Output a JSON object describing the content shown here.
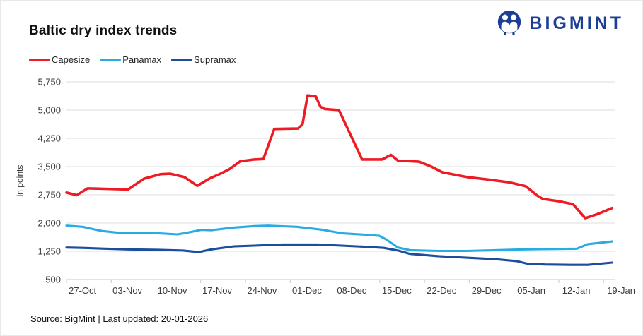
{
  "header": {
    "title": "Baltic dry index trends",
    "brand": "BIGMINT",
    "brand_color": "#1c3e95"
  },
  "footer": {
    "source_line": "Source: BigMint | Last updated: 20-01-2026"
  },
  "chart_data": {
    "type": "line",
    "title": "Baltic dry index trends",
    "xlabel": "",
    "ylabel": "in points",
    "x_unit": "days since 27-Oct",
    "x_domain": [
      -2.5,
      83
    ],
    "ylim": [
      500,
      5750
    ],
    "yticks": [
      500,
      1250,
      2000,
      2750,
      3500,
      4250,
      5000,
      5750
    ],
    "ytick_labels": [
      "500",
      "1,250",
      "2,000",
      "2,750",
      "3,500",
      "4,250",
      "5,000",
      "5,750"
    ],
    "categories": [
      "27-Oct",
      "03-Nov",
      "10-Nov",
      "17-Nov",
      "24-Nov",
      "01-Dec",
      "08-Dec",
      "15-Dec",
      "22-Dec",
      "29-Dec",
      "05-Jan",
      "12-Jan",
      "19-Jan"
    ],
    "category_days": [
      0,
      7,
      14,
      21,
      28,
      35,
      42,
      49,
      56,
      63,
      70,
      77,
      84
    ],
    "grid": "horizontal",
    "legend_position": "top-left",
    "colors": {
      "grid": "#dedede",
      "axis": "#c9c9c9",
      "tick_text": "#3c3c3c"
    },
    "series": [
      {
        "name": "Capesize",
        "color": "#ed1c24",
        "points": [
          [
            -2.5,
            2810
          ],
          [
            -0.9,
            2740
          ],
          [
            0.8,
            2920
          ],
          [
            3.5,
            2910
          ],
          [
            7.1,
            2890
          ],
          [
            9.6,
            3180
          ],
          [
            12.2,
            3300
          ],
          [
            13.7,
            3310
          ],
          [
            15.9,
            3220
          ],
          [
            17.9,
            2990
          ],
          [
            19.9,
            3190
          ],
          [
            21.5,
            3310
          ],
          [
            22.9,
            3430
          ],
          [
            24.6,
            3640
          ],
          [
            26.8,
            3690
          ],
          [
            28.2,
            3700
          ],
          [
            29.9,
            4500
          ],
          [
            33.6,
            4510
          ],
          [
            34.3,
            4620
          ],
          [
            35.1,
            5390
          ],
          [
            36.4,
            5360
          ],
          [
            37.1,
            5090
          ],
          [
            37.8,
            5030
          ],
          [
            40,
            5000
          ],
          [
            43.6,
            3690
          ],
          [
            46.7,
            3690
          ],
          [
            48.1,
            3810
          ],
          [
            49.2,
            3660
          ],
          [
            52.5,
            3630
          ],
          [
            54.4,
            3500
          ],
          [
            56.1,
            3350
          ],
          [
            60,
            3220
          ],
          [
            63,
            3160
          ],
          [
            66.6,
            3080
          ],
          [
            69.1,
            2980
          ],
          [
            71,
            2720
          ],
          [
            71.8,
            2640
          ],
          [
            74.3,
            2580
          ],
          [
            76.5,
            2500
          ],
          [
            78.4,
            2130
          ],
          [
            80.2,
            2230
          ],
          [
            82.6,
            2400
          ]
        ]
      },
      {
        "name": "Panamax",
        "color": "#2aace2",
        "points": [
          [
            -2.5,
            1930
          ],
          [
            0,
            1900
          ],
          [
            3,
            1790
          ],
          [
            5.2,
            1750
          ],
          [
            7.4,
            1730
          ],
          [
            11.8,
            1730
          ],
          [
            14.8,
            1700
          ],
          [
            16.8,
            1760
          ],
          [
            18.5,
            1820
          ],
          [
            20.1,
            1810
          ],
          [
            23.5,
            1880
          ],
          [
            26.8,
            1920
          ],
          [
            29,
            1930
          ],
          [
            33.4,
            1900
          ],
          [
            37.5,
            1820
          ],
          [
            40.4,
            1730
          ],
          [
            44.1,
            1690
          ],
          [
            46.3,
            1660
          ],
          [
            47.3,
            1570
          ],
          [
            49.2,
            1350
          ],
          [
            51.1,
            1280
          ],
          [
            55.5,
            1260
          ],
          [
            59.9,
            1260
          ],
          [
            64.4,
            1280
          ],
          [
            68.8,
            1300
          ],
          [
            72.9,
            1310
          ],
          [
            77.1,
            1320
          ],
          [
            78.8,
            1440
          ],
          [
            82.6,
            1510
          ]
        ]
      },
      {
        "name": "Supramax",
        "color": "#1c4e9d",
        "points": [
          [
            -2.5,
            1350
          ],
          [
            0,
            1340
          ],
          [
            3.5,
            1320
          ],
          [
            7.1,
            1300
          ],
          [
            11.8,
            1290
          ],
          [
            15.7,
            1270
          ],
          [
            18.1,
            1230
          ],
          [
            20.1,
            1300
          ],
          [
            23.5,
            1380
          ],
          [
            26.8,
            1400
          ],
          [
            31.2,
            1430
          ],
          [
            36.7,
            1430
          ],
          [
            40.4,
            1400
          ],
          [
            44.1,
            1370
          ],
          [
            47,
            1340
          ],
          [
            49.2,
            1270
          ],
          [
            51.1,
            1180
          ],
          [
            55.5,
            1120
          ],
          [
            59.9,
            1080
          ],
          [
            64.4,
            1040
          ],
          [
            67.7,
            990
          ],
          [
            69.4,
            920
          ],
          [
            72.1,
            900
          ],
          [
            76.2,
            890
          ],
          [
            78.8,
            890
          ],
          [
            82.6,
            950
          ]
        ]
      }
    ]
  }
}
